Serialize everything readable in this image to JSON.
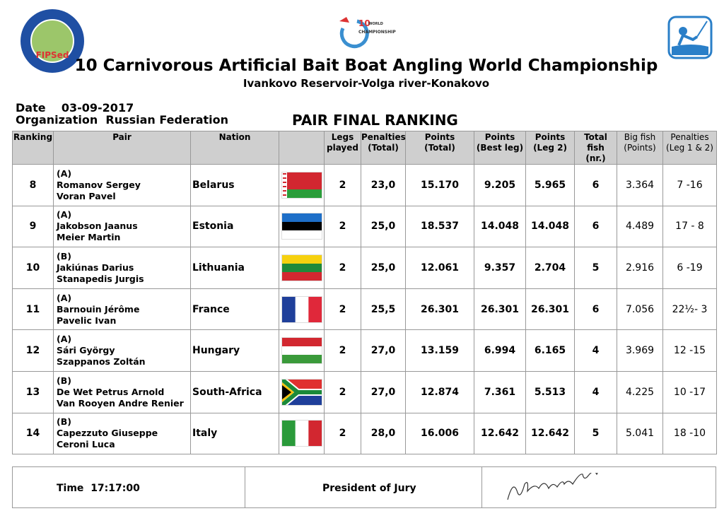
{
  "logos": {
    "left": "FIPSed",
    "center_number": "10",
    "center_word": "WORLD",
    "center_title": "CHAMPIONSHIP"
  },
  "header": {
    "title": "10 Carnivorous Artificial Bait Boat Angling World Championship",
    "subtitle": "Ivankovo Reservoir-Volga river-Konakovo",
    "date_label": "Date",
    "date": "03-09-2017",
    "organization_label": "Organization",
    "organization": "Russian Federation",
    "heading": "PAIR FINAL RANKING"
  },
  "table": {
    "columns": [
      [
        "Ranking"
      ],
      [
        "Pair"
      ],
      [
        "Nation"
      ],
      [],
      [
        "Legs",
        "played"
      ],
      [
        "Penalties",
        "(Total)"
      ],
      [
        "Points",
        "(Total)"
      ],
      [
        "Points",
        "(Best leg)"
      ],
      [
        "Points",
        "(Leg 2)"
      ],
      [
        "Total fish",
        "(nr.)"
      ],
      [
        "Big fish",
        "(Points)"
      ],
      [
        "Penalties",
        "(Leg 1 & 2)"
      ]
    ],
    "rows": [
      {
        "ranking": "8",
        "group": "(A)",
        "pair": [
          "Romanov Sergey",
          "Voran Pavel"
        ],
        "nation": "Belarus",
        "legs": "2",
        "penalties": "23,0",
        "points": "15.170",
        "best_leg": "9.205",
        "leg2": "5.965",
        "total_fish": "6",
        "big_fish": "3.364",
        "penalties_legs": "7 -16"
      },
      {
        "ranking": "9",
        "group": "(A)",
        "pair": [
          "Jakobson Jaanus",
          "Meier Martin"
        ],
        "nation": "Estonia",
        "legs": "2",
        "penalties": "25,0",
        "points": "18.537",
        "best_leg": "14.048",
        "leg2": "14.048",
        "total_fish": "6",
        "big_fish": "4.489",
        "penalties_legs": "17 - 8"
      },
      {
        "ranking": "10",
        "group": "(B)",
        "pair": [
          "Jakiúnas Darius",
          "Stanapedis Jurgis"
        ],
        "nation": "Lithuania",
        "legs": "2",
        "penalties": "25,0",
        "points": "12.061",
        "best_leg": "9.357",
        "leg2": "2.704",
        "total_fish": "5",
        "big_fish": "2.916",
        "penalties_legs": "6 -19"
      },
      {
        "ranking": "11",
        "group": "(A)",
        "pair": [
          "Barnouin Jérôme",
          "Pavelic Ivan"
        ],
        "nation": "France",
        "legs": "2",
        "penalties": "25,5",
        "points": "26.301",
        "best_leg": "26.301",
        "leg2": "26.301",
        "total_fish": "6",
        "big_fish": "7.056",
        "penalties_legs": "22½- 3"
      },
      {
        "ranking": "12",
        "group": "(A)",
        "pair": [
          "Sári György",
          "Szappanos Zoltán"
        ],
        "nation": "Hungary",
        "legs": "2",
        "penalties": "27,0",
        "points": "13.159",
        "best_leg": "6.994",
        "leg2": "6.165",
        "total_fish": "4",
        "big_fish": "3.969",
        "penalties_legs": "12 -15"
      },
      {
        "ranking": "13",
        "group": "(B)",
        "pair": [
          "De Wet Petrus Arnold",
          "Van Rooyen Andre Renier"
        ],
        "nation": "South-Africa",
        "legs": "2",
        "penalties": "27,0",
        "points": "12.874",
        "best_leg": "7.361",
        "leg2": "5.513",
        "total_fish": "4",
        "big_fish": "4.225",
        "penalties_legs": "10 -17"
      },
      {
        "ranking": "14",
        "group": "(B)",
        "pair": [
          "Capezzuto Giuseppe",
          "Ceroni Luca"
        ],
        "nation": "Italy",
        "legs": "2",
        "penalties": "28,0",
        "points": "16.006",
        "best_leg": "12.642",
        "leg2": "12.642",
        "total_fish": "5",
        "big_fish": "5.041",
        "penalties_legs": "18 -10"
      }
    ]
  },
  "footer": {
    "time_label": "Time",
    "time": "17:17:00",
    "president": "President of Jury"
  }
}
